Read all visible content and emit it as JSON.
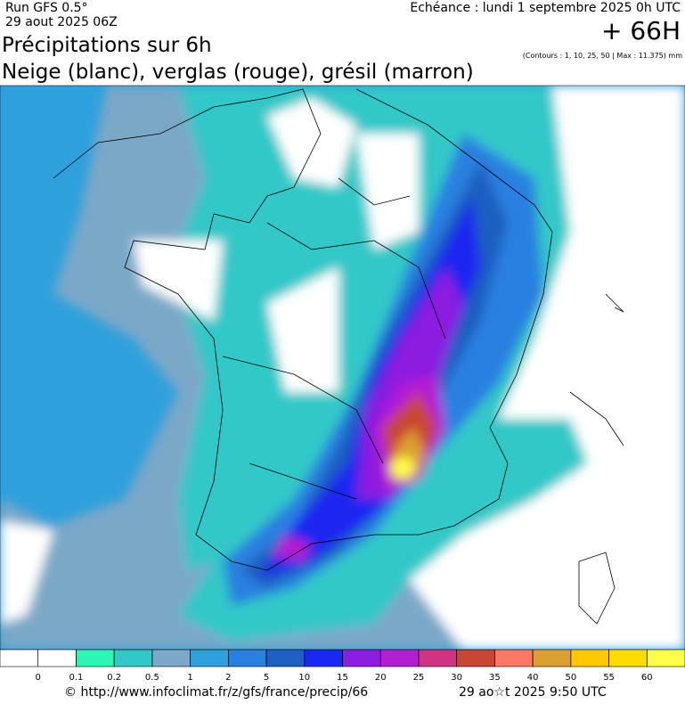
{
  "header": {
    "run": "Run GFS 0.5°",
    "date": "29 aout 2025 06Z",
    "echeance": "Echéance : lundi 1 septembre 2025 0h UTC",
    "horizon": "+ 66H",
    "title": "Précipitations sur 6h",
    "subtitle": "Neige (blanc), verglas (rouge), grésil (marron)",
    "contours": "(Contours : 1, 10, 25, 50 | Max : 11.375) mm"
  },
  "legend": {
    "ticks": [
      0,
      0.1,
      0.2,
      0.5,
      1,
      2,
      5,
      10,
      15,
      20,
      25,
      30,
      35,
      40,
      50,
      55,
      60
    ],
    "colors": [
      "#ffffff",
      "#ffffff",
      "#2ef5b4",
      "#33c8c8",
      "#7ca8c8",
      "#2ea0dc",
      "#2a80e0",
      "#1e5fc0",
      "#1a28f0",
      "#8c1ee0",
      "#b41ed2",
      "#d23282",
      "#c84632",
      "#fa7864",
      "#dca032",
      "#ffc800",
      "#ffdc00",
      "#ffff46"
    ]
  },
  "footer": {
    "source": "© http://www.infoclimat.fr/z/gfs/france/precip/66",
    "generated": "29 ao☆t 2025  9:50 UTC"
  }
}
